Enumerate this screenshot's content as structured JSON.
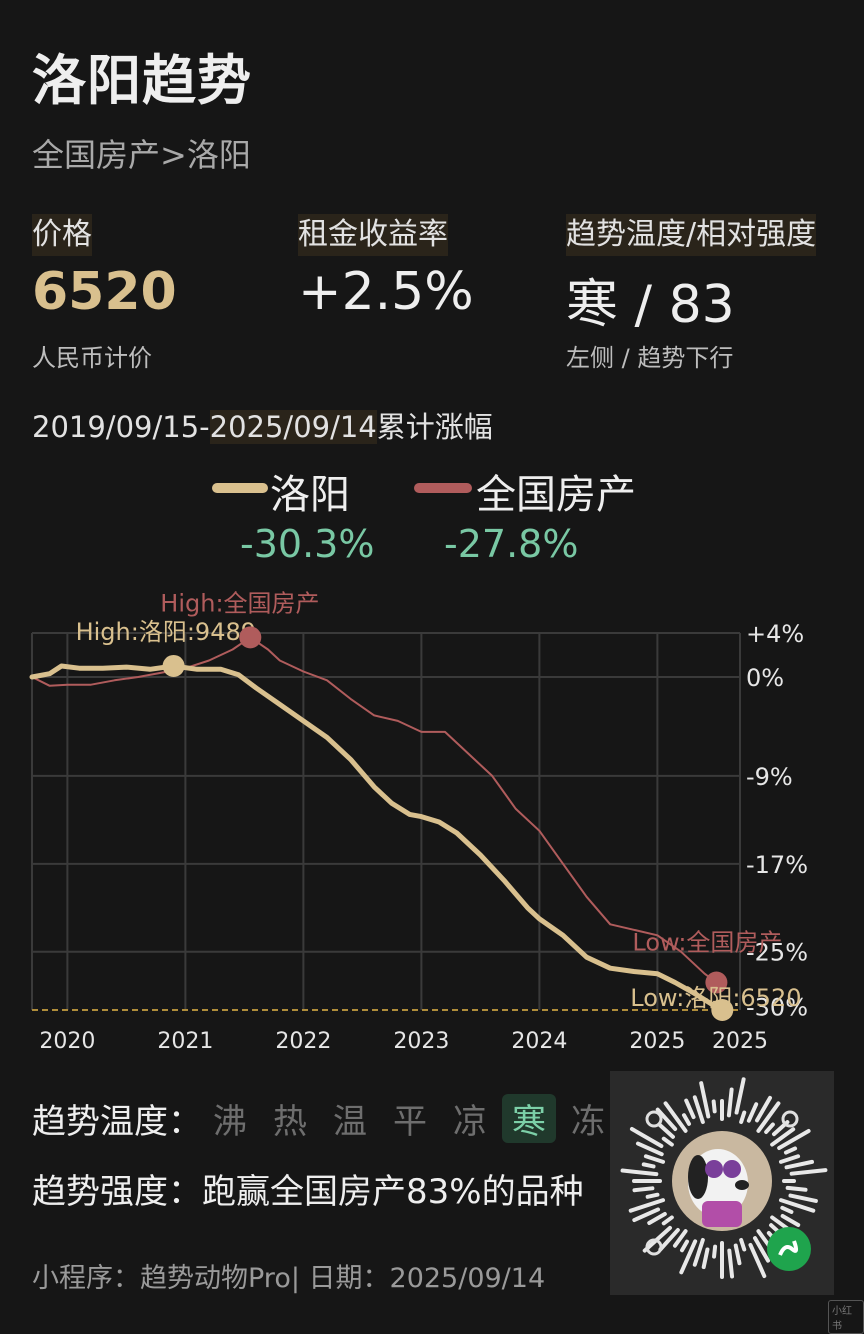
{
  "header": {
    "title": "洛阳趋势",
    "breadcrumb": "全国房产>洛阳"
  },
  "metrics": [
    {
      "label": "价格",
      "value": "6520",
      "sub": "人民币计价",
      "value_color": "#d9c08e"
    },
    {
      "label": "租金收益率",
      "value": "+2.5%",
      "sub": "",
      "value_color": "#eeeeee"
    },
    {
      "label": "趋势温度/相对强度",
      "value": "寒 / 83",
      "sub": "左侧 / 趋势下行",
      "value_color": "#eeeeee"
    }
  ],
  "range": {
    "start": "2019/09/15-",
    "end": "2025/09/14",
    "suffix": "累计涨幅"
  },
  "legend": [
    {
      "name": "洛阳",
      "value": "-30.3%",
      "color": "#d9c08e"
    },
    {
      "name": "全国房产",
      "value": "-27.8%",
      "color": "#b05c5c"
    }
  ],
  "chart_data": {
    "type": "line",
    "x_tick_labels": [
      "2020",
      "2021",
      "2022",
      "2023",
      "2024",
      "2025",
      "2025"
    ],
    "y_tick_labels": [
      "+4%",
      "0%",
      "-9%",
      "-17%",
      "-25%",
      "-30%"
    ],
    "yticks": [
      4,
      0,
      -9,
      -17,
      -25,
      -30
    ],
    "ylim": [
      -30.3,
      4
    ],
    "xlim": [
      2019.7,
      2025.7
    ],
    "grid": true,
    "series": [
      {
        "name": "洛阳",
        "color": "#d9c08e",
        "x": [
          2019.7,
          2019.85,
          2019.95,
          2020.1,
          2020.3,
          2020.5,
          2020.7,
          2020.9,
          2021.1,
          2021.3,
          2021.45,
          2021.6,
          2021.8,
          2022.0,
          2022.2,
          2022.4,
          2022.6,
          2022.75,
          2022.9,
          2023.0,
          2023.15,
          2023.3,
          2023.5,
          2023.7,
          2023.9,
          2024.0,
          2024.2,
          2024.4,
          2024.6,
          2024.8,
          2025.0,
          2025.15,
          2025.3,
          2025.45,
          2025.55
        ],
        "values": [
          0,
          0.3,
          1.0,
          0.8,
          0.8,
          0.9,
          0.7,
          1.0,
          0.7,
          0.7,
          0.2,
          -1.0,
          -2.5,
          -4.0,
          -5.5,
          -7.5,
          -10.0,
          -11.5,
          -12.5,
          -12.7,
          -13.2,
          -14.2,
          -16.2,
          -18.5,
          -21.0,
          -22.0,
          -23.5,
          -25.5,
          -26.5,
          -26.8,
          -27.0,
          -27.8,
          -28.7,
          -29.7,
          -30.3
        ]
      },
      {
        "name": "全国房产",
        "color": "#b05c5c",
        "x": [
          2019.7,
          2019.85,
          2020.0,
          2020.2,
          2020.4,
          2020.6,
          2020.8,
          2021.0,
          2021.2,
          2021.4,
          2021.55,
          2021.7,
          2021.8,
          2022.0,
          2022.2,
          2022.4,
          2022.6,
          2022.8,
          2023.0,
          2023.2,
          2023.4,
          2023.6,
          2023.8,
          2024.0,
          2024.2,
          2024.4,
          2024.6,
          2024.8,
          2025.0,
          2025.2,
          2025.4,
          2025.5
        ],
        "values": [
          0,
          -0.8,
          -0.7,
          -0.7,
          -0.3,
          0,
          0.4,
          0.8,
          1.5,
          2.5,
          3.6,
          2.5,
          1.5,
          0.5,
          -0.3,
          -2.0,
          -3.5,
          -4.0,
          -5.0,
          -5.0,
          -7.0,
          -9.0,
          -12.0,
          -14.0,
          -17.0,
          -20.0,
          -22.5,
          -23.0,
          -23.5,
          -25.0,
          -27.0,
          -27.8
        ]
      }
    ],
    "annotations": [
      {
        "text": "High:洛阳:9489",
        "series": 0,
        "x": 2020.9,
        "y": 1.0
      },
      {
        "text": "High:全国房产",
        "series": 1,
        "x": 2021.55,
        "y": 3.6
      },
      {
        "text": "Low:全国房产",
        "series": 1,
        "x": 2025.5,
        "y": -27.8
      },
      {
        "text": "Low:洛阳:6520",
        "series": 0,
        "x": 2025.55,
        "y": -30.3
      }
    ]
  },
  "temperature": {
    "label": "趋势温度：",
    "levels": [
      "沸",
      "热",
      "温",
      "平",
      "凉",
      "寒",
      "冻"
    ],
    "active": "寒"
  },
  "strength": {
    "label": "趋势强度：",
    "text": "跑赢全国房产83%的品种"
  },
  "footer": {
    "text": "小程序：趋势动物Pro| 日期：2025/09/14"
  },
  "watermark": "小红书"
}
